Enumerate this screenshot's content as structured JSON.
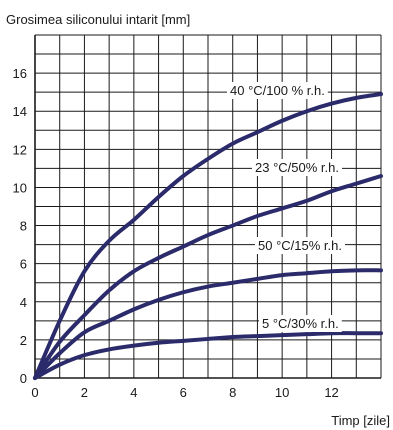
{
  "chart_data": {
    "type": "line",
    "title": "Grosimea siliconului intarit [mm]",
    "xlabel": "Timp [zile]",
    "ylabel": "",
    "xlim": [
      0,
      14
    ],
    "ylim": [
      0,
      18
    ],
    "xticks": [
      0,
      2,
      4,
      6,
      8,
      10,
      12
    ],
    "yticks": [
      0,
      2,
      4,
      6,
      8,
      10,
      12,
      14,
      16
    ],
    "grid": true,
    "x": [
      0,
      1,
      2,
      3,
      4,
      5,
      6,
      7,
      8,
      9,
      10,
      11,
      12,
      13,
      14
    ],
    "series": [
      {
        "name": "40 °C/100 % r.h.",
        "values": [
          0,
          3.0,
          5.6,
          7.2,
          8.3,
          9.5,
          10.6,
          11.5,
          12.3,
          12.9,
          13.5,
          14.0,
          14.4,
          14.7,
          14.9
        ]
      },
      {
        "name": "23 °C/50% r.h.",
        "values": [
          0,
          1.9,
          3.3,
          4.6,
          5.6,
          6.3,
          6.9,
          7.5,
          8.0,
          8.5,
          8.9,
          9.3,
          9.8,
          10.2,
          10.6
        ]
      },
      {
        "name": "50 °C/15% r.h.",
        "values": [
          0,
          1.3,
          2.4,
          3.0,
          3.6,
          4.1,
          4.5,
          4.8,
          5.0,
          5.2,
          5.4,
          5.5,
          5.6,
          5.65,
          5.65
        ]
      },
      {
        "name": "5 °C/30% r.h.",
        "values": [
          0,
          0.7,
          1.2,
          1.5,
          1.7,
          1.85,
          1.95,
          2.05,
          2.15,
          2.2,
          2.25,
          2.3,
          2.35,
          2.35,
          2.35
        ]
      }
    ],
    "line_color": "#2b2a6b",
    "grid_color": "#1a1a1a"
  }
}
